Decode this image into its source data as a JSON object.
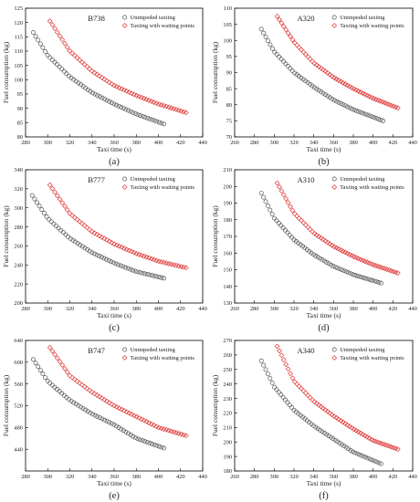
{
  "chart_data": [
    {
      "type": "scatter",
      "title": "B738",
      "panel_label": "(a)",
      "xlabel": "Taxi time (s)",
      "ylabel": "Fuel consumption (kg)",
      "xlim": [
        280,
        440
      ],
      "ylim": [
        80,
        125
      ],
      "xticks": [
        280,
        300,
        320,
        340,
        360,
        380,
        400,
        420,
        440
      ],
      "yticks": [
        80,
        85,
        90,
        95,
        100,
        105,
        110,
        115,
        120,
        125
      ],
      "legend_position": "top-right",
      "series": [
        {
          "name": "Unimpeded taxiing",
          "color": "#555555",
          "x": [
            287,
            300,
            320,
            340,
            360,
            380,
            405
          ],
          "y": [
            116.5,
            108.5,
            101,
            95.5,
            91.5,
            88,
            84.5
          ]
        },
        {
          "name": "Taxiing with waiting points",
          "color": "#e03a3a",
          "x": [
            302,
            320,
            340,
            360,
            380,
            400,
            425
          ],
          "y": [
            120.5,
            110,
            103,
            98,
            94.5,
            91.5,
            88.5
          ]
        }
      ]
    },
    {
      "type": "scatter",
      "title": "A320",
      "panel_label": "(b)",
      "xlabel": "Taxi time (s)",
      "ylabel": "Fuel consumption (kg)",
      "xlim": [
        260,
        440
      ],
      "ylim": [
        70,
        110
      ],
      "xticks": [
        260,
        280,
        300,
        320,
        340,
        360,
        380,
        400,
        420,
        440
      ],
      "yticks": [
        70,
        75,
        80,
        85,
        90,
        95,
        100,
        105,
        110
      ],
      "legend_position": "top-right",
      "series": [
        {
          "name": "Unimpeded taxiing",
          "color": "#555555",
          "x": [
            287,
            300,
            320,
            340,
            360,
            380,
            410
          ],
          "y": [
            103.5,
            96.5,
            90,
            85.5,
            81.5,
            78.5,
            75
          ]
        },
        {
          "name": "Taxiing with waiting points",
          "color": "#e03a3a",
          "x": [
            303,
            320,
            340,
            360,
            380,
            400,
            425
          ],
          "y": [
            107.5,
            99.5,
            93,
            88.5,
            85,
            82,
            79
          ]
        }
      ]
    },
    {
      "type": "scatter",
      "title": "B777",
      "panel_label": "(c)",
      "xlabel": "Taxi time (s)",
      "ylabel": "Fuel consumption (kg)",
      "xlim": [
        280,
        440
      ],
      "ylim": [
        200,
        340
      ],
      "xticks": [
        280,
        300,
        320,
        340,
        360,
        380,
        400,
        420,
        440
      ],
      "yticks": [
        200,
        220,
        240,
        260,
        280,
        300,
        320,
        340
      ],
      "legend_position": "top-right",
      "series": [
        {
          "name": "Unimpeded taxiing",
          "color": "#555555",
          "x": [
            286,
            300,
            320,
            340,
            360,
            380,
            405
          ],
          "y": [
            313,
            289,
            268,
            253,
            242,
            233,
            226
          ]
        },
        {
          "name": "Taxiing with waiting points",
          "color": "#e03a3a",
          "x": [
            302,
            320,
            340,
            360,
            380,
            400,
            425
          ],
          "y": [
            324,
            294,
            275,
            262,
            252,
            244,
            237
          ]
        }
      ]
    },
    {
      "type": "scatter",
      "title": "A310",
      "panel_label": "(d)",
      "xlabel": "Taxi time (s)",
      "ylabel": "Fuel consumption (kg)",
      "xlim": [
        260,
        440
      ],
      "ylim": [
        130,
        210
      ],
      "xticks": [
        260,
        280,
        300,
        320,
        340,
        360,
        380,
        400,
        420,
        440
      ],
      "yticks": [
        130,
        140,
        150,
        160,
        170,
        180,
        190,
        200,
        210
      ],
      "legend_position": "top-right",
      "series": [
        {
          "name": "Unimpeded taxiing",
          "color": "#555555",
          "x": [
            287,
            300,
            320,
            340,
            360,
            380,
            408
          ],
          "y": [
            196,
            181,
            168,
            159,
            152,
            147,
            142
          ]
        },
        {
          "name": "Taxiing with waiting points",
          "color": "#e03a3a",
          "x": [
            303,
            320,
            340,
            360,
            380,
            400,
            425
          ],
          "y": [
            202,
            184,
            172,
            164,
            158,
            153,
            148
          ]
        }
      ]
    },
    {
      "type": "scatter",
      "title": "B747",
      "panel_label": "(e)",
      "xlabel": "Taxi time (s)",
      "ylabel": "Fuel consumption (kg)",
      "xlim": [
        280,
        440
      ],
      "ylim": [
        400,
        640
      ],
      "xticks": [
        280,
        300,
        320,
        340,
        360,
        380,
        400,
        420,
        440
      ],
      "yticks": [
        440,
        480,
        520,
        560,
        600,
        640
      ],
      "legend_position": "top-right",
      "series": [
        {
          "name": "Unimpeded taxiing",
          "color": "#555555",
          "x": [
            287,
            300,
            320,
            340,
            360,
            380,
            405
          ],
          "y": [
            605,
            565,
            530,
            505,
            485,
            460,
            442
          ]
        },
        {
          "name": "Taxiing with waiting points",
          "color": "#e03a3a",
          "x": [
            302,
            320,
            340,
            360,
            380,
            400,
            425
          ],
          "y": [
            627,
            575,
            545,
            520,
            500,
            480,
            465
          ]
        }
      ]
    },
    {
      "type": "scatter",
      "title": "A340",
      "panel_label": "(f)",
      "xlabel": "Taxi time (s)",
      "ylabel": "Fuel consumption (kg)",
      "xlim": [
        260,
        440
      ],
      "ylim": [
        180,
        270
      ],
      "xticks": [
        260,
        280,
        300,
        320,
        340,
        360,
        380,
        400,
        420,
        440
      ],
      "yticks": [
        180,
        190,
        200,
        210,
        220,
        230,
        240,
        250,
        260,
        270
      ],
      "legend_position": "top-right",
      "series": [
        {
          "name": "Unimpeded taxiing",
          "color": "#555555",
          "x": [
            287,
            300,
            320,
            340,
            360,
            380,
            408
          ],
          "y": [
            256,
            238,
            222,
            211,
            202,
            193,
            185
          ]
        },
        {
          "name": "Taxiing with waiting points",
          "color": "#e03a3a",
          "x": [
            303,
            320,
            340,
            360,
            380,
            400,
            425
          ],
          "y": [
            266,
            242,
            228,
            218,
            209,
            201,
            195
          ]
        }
      ]
    }
  ]
}
